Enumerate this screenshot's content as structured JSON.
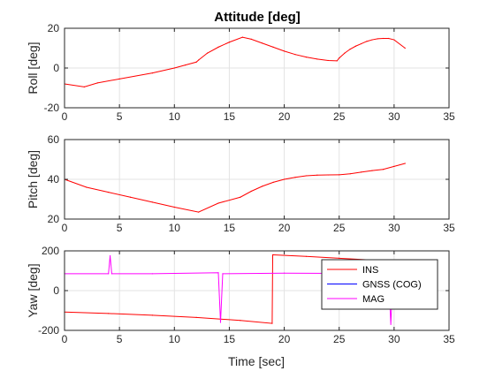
{
  "chart_data": {
    "type": "line",
    "title": "Attitude [deg]",
    "xlabel": "Time [sec]",
    "xlim": [
      0,
      35
    ],
    "xticks": [
      0,
      5,
      10,
      15,
      20,
      25,
      30,
      35
    ],
    "grid": true,
    "colors": {
      "ins": "#ff0000",
      "gnss": "#0000ff",
      "mag": "#ff00ff"
    },
    "legend": {
      "placement": "bottom-right of yaw panel",
      "entries": [
        "INS",
        "GNSS (COG)",
        "MAG"
      ]
    },
    "subplots": [
      {
        "id": "roll",
        "ylabel": "Roll [deg]",
        "ylim": [
          -20,
          20
        ],
        "yticks": [
          -20,
          0,
          20
        ],
        "series": [
          {
            "name": "INS",
            "x": [
              0,
              1.8,
              3,
              5,
              8,
              10,
              11,
              12,
              12.2,
              13,
              14,
              15,
              16.2,
              17,
              18,
              19,
              20,
              21,
              22,
              23,
              24,
              24.8,
              25,
              25.5,
              26,
              26.5,
              27,
              27.5,
              28,
              28.5,
              29,
              29.5,
              30,
              31
            ],
            "y": [
              -8,
              -9.5,
              -7.5,
              -5.5,
              -2.5,
              0,
              1.5,
              3,
              4,
              7.5,
              10.5,
              13,
              15.5,
              14.5,
              12.5,
              10.5,
              8.5,
              6.8,
              5.5,
              4.5,
              3.8,
              3.6,
              5,
              7.5,
              9.5,
              11,
              12.2,
              13.4,
              14.2,
              14.7,
              14.9,
              14.9,
              14.2,
              10
            ]
          }
        ]
      },
      {
        "id": "pitch",
        "ylabel": "Pitch [deg]",
        "ylim": [
          20,
          60
        ],
        "yticks": [
          20,
          40,
          60
        ],
        "series": [
          {
            "name": "INS",
            "x": [
              0,
              2,
              4,
              6,
              8,
              10,
              12.2,
              14,
              16,
              17,
              18,
              19,
              20,
              21,
              22,
              23,
              24,
              25,
              26,
              27,
              28,
              29,
              30,
              31
            ],
            "y": [
              40,
              36,
              33.5,
              31,
              28.5,
              26,
              23.5,
              28,
              31,
              34,
              36.5,
              38.5,
              40,
              41,
              41.8,
              42.1,
              42.2,
              42.3,
              42.8,
              43.6,
              44.4,
              45,
              46.5,
              48
            ]
          }
        ]
      },
      {
        "id": "yaw",
        "ylabel": "Yaw [deg]",
        "ylim": [
          -200,
          200
        ],
        "yticks": [
          -200,
          0,
          200
        ],
        "series": [
          {
            "name": "INS",
            "x": [
              0,
              4,
              8,
              12,
              16,
              18.9,
              18.95,
              19,
              22,
              25,
              28,
              31
            ],
            "y": [
              -108,
              -115,
              -124,
              -135,
              -150,
              -165,
              180,
              180,
              172,
              163,
              154,
              145
            ]
          },
          {
            "name": "MAG",
            "x": [
              0,
              4,
              4.15,
              4.3,
              8,
              14,
              14.2,
              14.4,
              20,
              29.5,
              29.7,
              29.9,
              31
            ],
            "y": [
              85,
              85,
              175,
              85,
              85,
              90,
              -160,
              85,
              88,
              85,
              -170,
              85,
              85
            ]
          }
        ]
      }
    ]
  }
}
